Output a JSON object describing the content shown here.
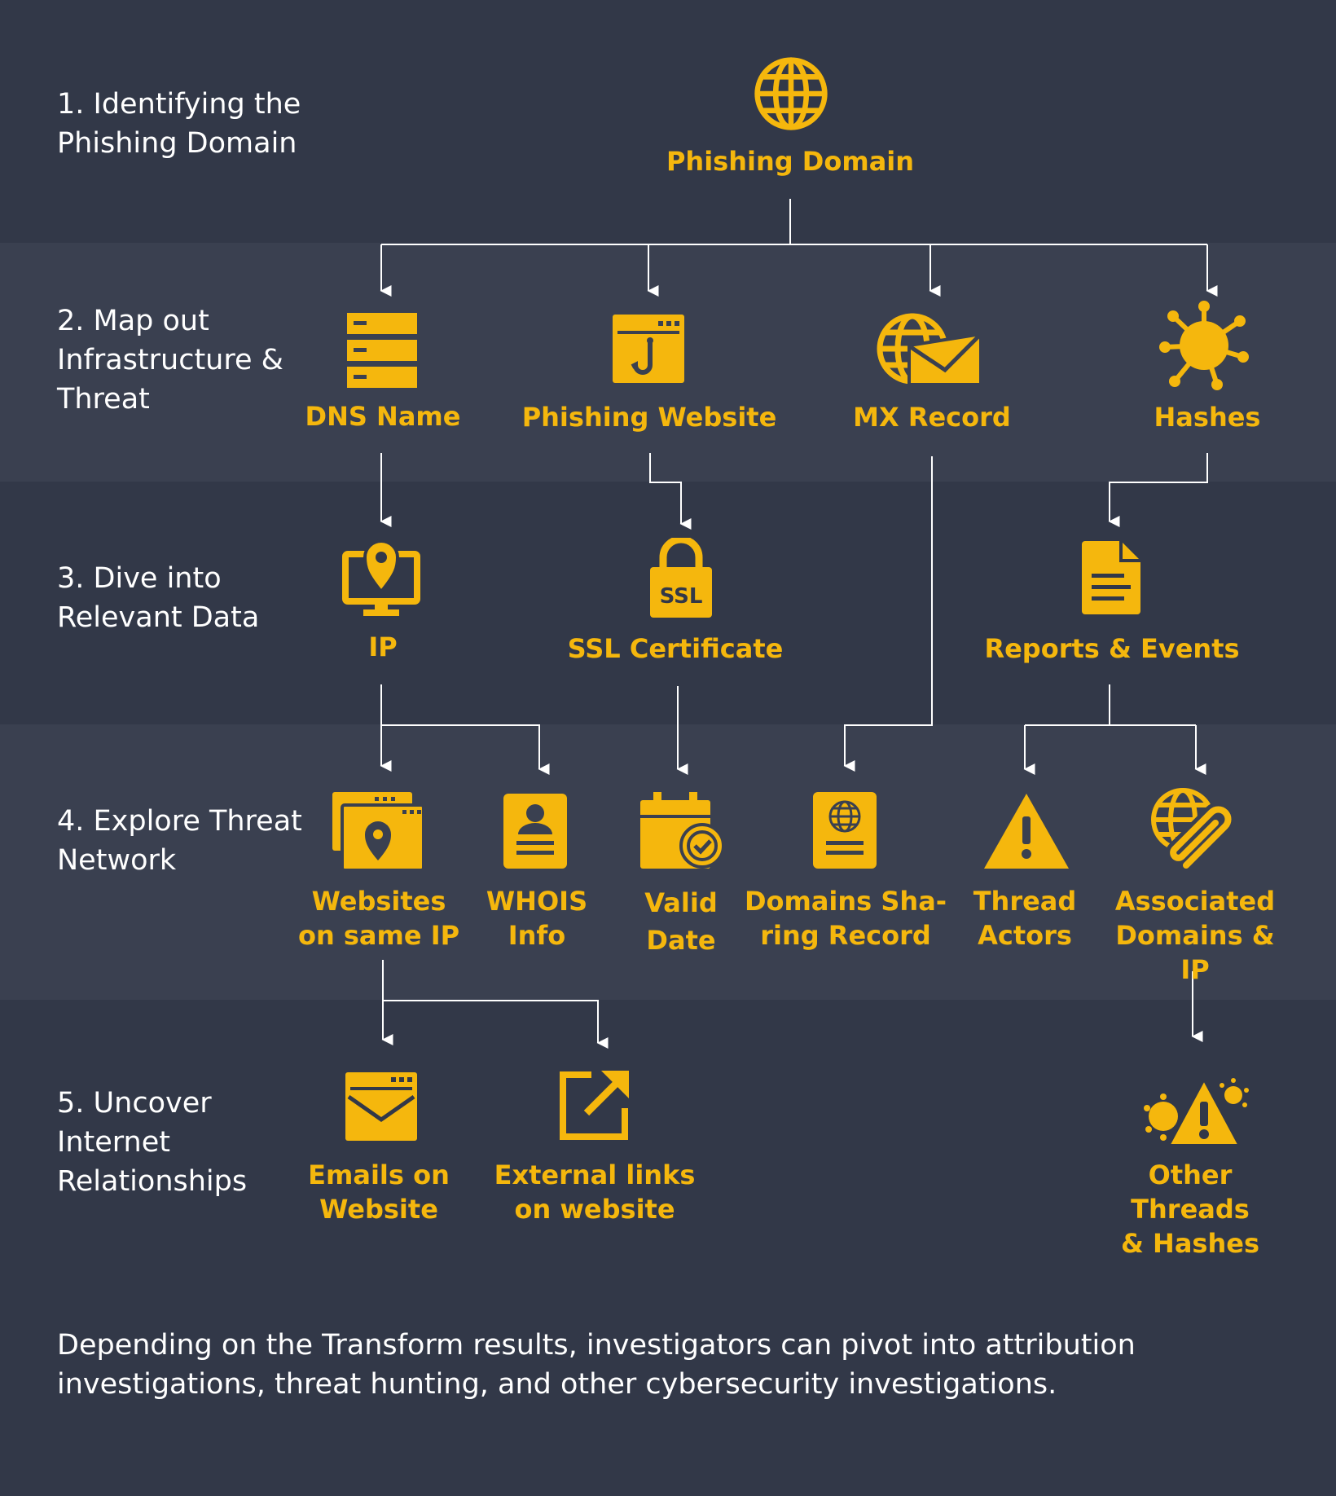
{
  "steps": [
    "1. Identifying the Phishing Domain",
    "2. Map out Infrastructure & Threat",
    "3. Dive into Relevant Data",
    "4. Explore Threat Network",
    "5. Uncover Internet Relationships"
  ],
  "nodes": {
    "phishing_domain": "Phishing Domain",
    "dns_name": "DNS Name",
    "phishing_website": "Phishing Website",
    "mx_record": "MX Record",
    "hashes": "Hashes",
    "ip": "IP",
    "ssl_certificate": "SSL Certificate",
    "reports_events": "Reports & Events",
    "websites_same_ip": "Websites\non same IP",
    "whois_info": "WHOIS\nInfo",
    "valid_date": "Valid\nDate",
    "domains_sharing_record": "Domains Sha-\nring Record",
    "thread_actors": "Thread\nActors",
    "associated_domains_ip": "Associated\nDomains & IP",
    "emails_on_website": "Emails on\nWebsite",
    "external_links": "External links\non website",
    "other_threads_hashes": "Other Threads\n& Hashes"
  },
  "icons": {
    "phishing_domain": "globe-icon",
    "dns_name": "server-icon",
    "phishing_website": "browser-hook-icon",
    "mx_record": "globe-envelope-icon",
    "hashes": "virus-icon",
    "ip": "monitor-location-icon",
    "ssl_certificate": "ssl-lock-icon",
    "reports_events": "document-icon",
    "websites_same_ip": "windows-location-icon",
    "whois_info": "id-card-icon",
    "valid_date": "calendar-check-icon",
    "domains_sharing_record": "passport-icon",
    "thread_actors": "warning-icon",
    "associated_domains_ip": "globe-paperclip-icon",
    "emails_on_website": "browser-envelope-icon",
    "external_links": "external-link-icon",
    "other_threads_hashes": "virus-warning-icon"
  },
  "footer": "Depending on the Transform results, investigators can pivot into attribution investigations, threat hunting, and other cybersecurity investigations.",
  "colors": {
    "accent": "#f5b70d",
    "background": "#323848",
    "band": "#3a4050",
    "text": "#ffffff"
  }
}
